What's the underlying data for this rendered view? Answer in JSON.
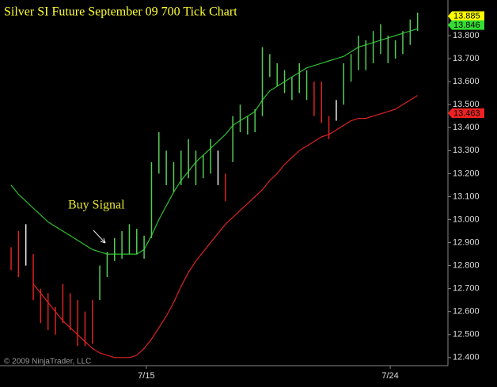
{
  "chart_data": {
    "type": "ohlc",
    "title": "Silver SI Future September 09 700 Tick Chart",
    "annotation": "Buy Signal",
    "copyright": "© 2009 NinjaTrader, LLC",
    "ylim": [
      12.365,
      13.955
    ],
    "yticks": [
      {
        "value": 12.4,
        "label": "12.400"
      },
      {
        "value": 12.5,
        "label": "12.500"
      },
      {
        "value": 12.6,
        "label": "12.600"
      },
      {
        "value": 12.7,
        "label": "12.700"
      },
      {
        "value": 12.8,
        "label": "12.800"
      },
      {
        "value": 12.9,
        "label": "12.900"
      },
      {
        "value": 13.0,
        "label": "13.000"
      },
      {
        "value": 13.1,
        "label": "13.100"
      },
      {
        "value": 13.2,
        "label": "13.200"
      },
      {
        "value": 13.3,
        "label": "13.300"
      },
      {
        "value": 13.4,
        "label": "13.400"
      },
      {
        "value": 13.5,
        "label": "13.500"
      },
      {
        "value": 13.6,
        "label": "13.600"
      },
      {
        "value": 13.7,
        "label": "13.700"
      },
      {
        "value": 13.8,
        "label": "13.800"
      }
    ],
    "xlim": [
      -1.5,
      59
    ],
    "xticks": [
      {
        "value": 18.3,
        "label": "7/15"
      },
      {
        "value": 51.3,
        "label": "7/24"
      }
    ],
    "high": [
      12.88,
      12.95,
      12.98,
      12.85,
      12.7,
      12.68,
      12.62,
      12.72,
      12.68,
      12.65,
      12.6,
      12.65,
      12.8,
      12.86,
      12.92,
      12.95,
      12.98,
      12.96,
      12.93,
      13.25,
      13.38,
      13.3,
      13.25,
      13.3,
      13.35,
      13.3,
      13.28,
      13.35,
      13.3,
      13.2,
      13.45,
      13.5,
      13.45,
      13.48,
      13.75,
      13.72,
      13.68,
      13.65,
      13.62,
      13.68,
      13.65,
      13.6,
      13.6,
      13.45,
      13.52,
      13.68,
      13.72,
      13.8,
      13.78,
      13.82,
      13.85,
      13.8,
      13.78,
      13.82,
      13.87,
      13.9
    ],
    "low": [
      12.78,
      12.75,
      12.8,
      12.65,
      12.55,
      12.52,
      12.5,
      12.55,
      12.52,
      12.45,
      12.45,
      12.46,
      12.65,
      12.75,
      12.82,
      12.83,
      12.85,
      12.85,
      12.83,
      12.92,
      13.2,
      13.15,
      13.12,
      13.15,
      13.18,
      13.15,
      13.18,
      13.2,
      13.15,
      13.08,
      13.25,
      13.38,
      13.37,
      13.38,
      13.45,
      13.62,
      13.58,
      13.55,
      13.52,
      13.55,
      13.52,
      13.45,
      13.42,
      13.35,
      13.43,
      13.5,
      13.6,
      13.65,
      13.65,
      13.68,
      13.72,
      13.68,
      13.7,
      13.72,
      13.76,
      13.82
    ],
    "bar_colors": [
      "#d22",
      "#d22",
      "#eee",
      "#d22",
      "#d22",
      "#d22",
      "#d22",
      "#d22",
      "#d22",
      "#d22",
      "#d22",
      "#d22",
      "#5c5",
      "#5c5",
      "#5c5",
      "#5c5",
      "#5c5",
      "#5c5",
      "#5c5",
      "#5c5",
      "#5c5",
      "#5c5",
      "#5c5",
      "#5c5",
      "#5c5",
      "#5c5",
      "#5c5",
      "#5c5",
      "#eee",
      "#d22",
      "#5c5",
      "#5c5",
      "#5c5",
      "#5c5",
      "#5c5",
      "#5c5",
      "#5c5",
      "#5c5",
      "#5c5",
      "#5c5",
      "#5c5",
      "#d22",
      "#d22",
      "#d22",
      "#eee",
      "#5c5",
      "#5c5",
      "#5c5",
      "#5c5",
      "#5c5",
      "#5c5",
      "#5c5",
      "#5c5",
      "#5c5",
      "#5c5",
      "#5c5"
    ],
    "series": [
      {
        "color": "#2fbf2f",
        "values": [
          13.15,
          13.11,
          13.08,
          13.05,
          13.02,
          12.99,
          12.97,
          12.95,
          12.93,
          12.91,
          12.89,
          12.87,
          12.86,
          12.85,
          12.85,
          12.85,
          12.85,
          12.85,
          12.87,
          12.93,
          13.0,
          13.06,
          13.12,
          13.17,
          13.21,
          13.25,
          13.28,
          13.31,
          13.34,
          13.37,
          13.41,
          13.43,
          13.45,
          13.47,
          13.52,
          13.56,
          13.58,
          13.6,
          13.62,
          13.64,
          13.66,
          13.67,
          13.68,
          13.69,
          13.7,
          13.71,
          13.73,
          13.75,
          13.76,
          13.77,
          13.78,
          13.79,
          13.8,
          13.81,
          13.82,
          13.83
        ]
      },
      {
        "color": "#dd2222",
        "values": [
          null,
          null,
          null,
          12.72,
          12.68,
          12.64,
          12.6,
          12.56,
          12.53,
          12.5,
          12.47,
          12.44,
          12.42,
          12.41,
          12.4,
          12.4,
          12.4,
          12.41,
          12.44,
          12.48,
          12.53,
          12.58,
          12.64,
          12.71,
          12.77,
          12.82,
          12.86,
          12.9,
          12.94,
          12.98,
          13.01,
          13.04,
          13.07,
          13.1,
          13.13,
          13.17,
          13.2,
          13.24,
          13.27,
          13.3,
          13.32,
          13.34,
          13.36,
          13.37,
          13.39,
          13.41,
          13.43,
          13.44,
          13.44,
          13.45,
          13.46,
          13.47,
          13.48,
          13.5,
          13.52,
          13.54
        ]
      }
    ],
    "price_markers": [
      {
        "value": 13.885,
        "color": "#ffff00"
      },
      {
        "value": 13.846,
        "color": "#33dd33"
      },
      {
        "value": 13.463,
        "color": "#ee2222"
      }
    ]
  }
}
